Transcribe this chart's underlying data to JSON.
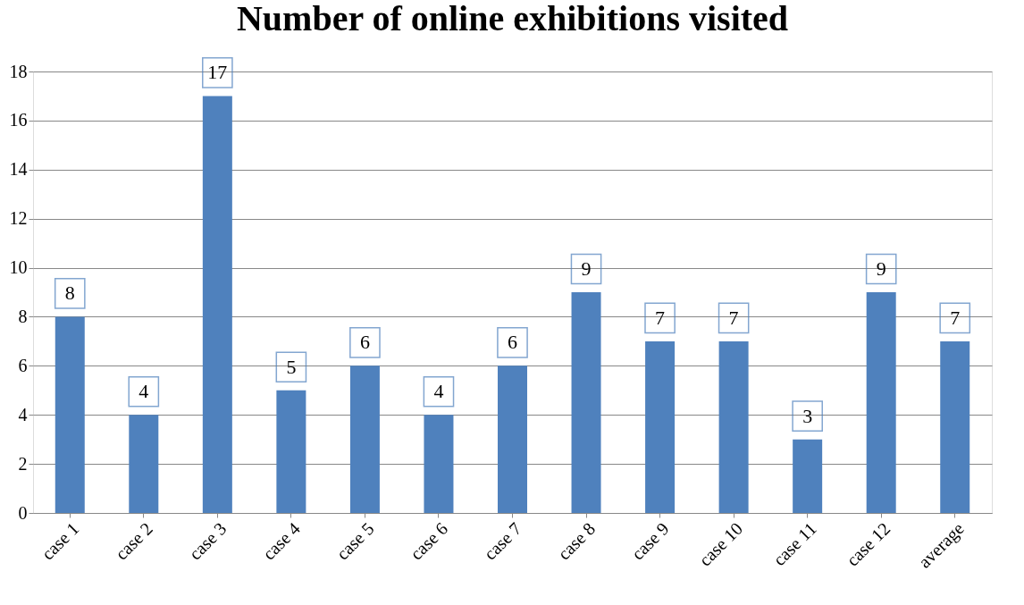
{
  "chart_data": {
    "type": "bar",
    "title": "Number of online exhibitions visited",
    "categories": [
      "case 1",
      "case 2",
      "case 3",
      "case 4",
      "case 5",
      "case 6",
      "case 7",
      "case 8",
      "case 9",
      "case 10",
      "case 11",
      "case 12",
      "average"
    ],
    "values": [
      8,
      4,
      17,
      5,
      6,
      4,
      6,
      9,
      7,
      7,
      3,
      9,
      7
    ],
    "color": "#4f81bd",
    "ylim": [
      0,
      18
    ],
    "yticks": [
      0,
      2,
      4,
      6,
      8,
      10,
      12,
      14,
      16,
      18
    ],
    "grid": "y",
    "data_labels": true
  }
}
